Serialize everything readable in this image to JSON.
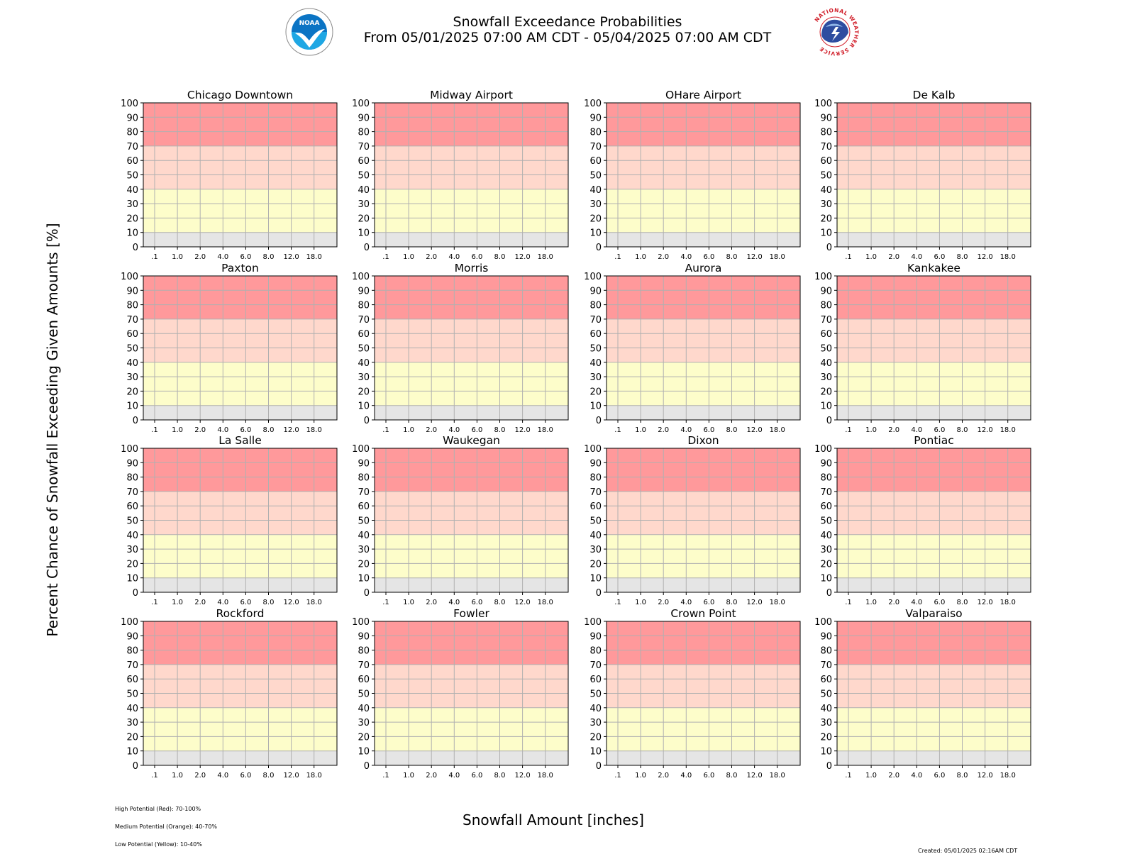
{
  "title": {
    "line1": "Snowfall Exceedance Probabilities",
    "line2": "From 05/01/2025 07:00 AM CDT - 05/04/2025 07:00 AM CDT"
  },
  "logos": {
    "left": "NOAA",
    "right": "NATIONAL WEATHER SERVICE"
  },
  "axis": {
    "ylabel": "Percent Chance of Snowfall Exceeding Given Amounts [%]",
    "xlabel": "Snowfall Amount [inches]"
  },
  "legend_notes": {
    "high": "High Potential (Red): 70-100%",
    "medium": "Medium Potential (Orange): 40-70%",
    "low": "Low Potential (Yellow): 10-40%"
  },
  "created": "Created: 05/01/2025 02:16AM CDT",
  "colors": {
    "high": "#ff999b",
    "medium": "#ffd8cc",
    "low": "#fdfdca",
    "minimal": "#e5e5e5",
    "grid": "#b0b0b0"
  },
  "chart_data": {
    "type": "line",
    "panels": [
      "Chicago Downtown",
      "Midway Airport",
      "OHare Airport",
      "De Kalb",
      "Paxton",
      "Morris",
      "Aurora",
      "Kankakee",
      "La Salle",
      "Waukegan",
      "Dixon",
      "Pontiac",
      "Rockford",
      "Fowler",
      "Crown Point",
      "Valparaiso"
    ],
    "x_ticks": [
      ".1",
      "1.0",
      "2.0",
      "4.0",
      "6.0",
      "8.0",
      "12.0",
      "18.0"
    ],
    "y_ticks": [
      0,
      10,
      20,
      30,
      40,
      50,
      60,
      70,
      80,
      90,
      100
    ],
    "ylim": [
      0,
      100
    ],
    "bands": [
      {
        "from": 0,
        "to": 10,
        "color": "#e5e5e5"
      },
      {
        "from": 10,
        "to": 40,
        "color": "#fdfdca"
      },
      {
        "from": 40,
        "to": 70,
        "color": "#ffd8cc"
      },
      {
        "from": 70,
        "to": 100,
        "color": "#ff999b"
      }
    ],
    "grid": true,
    "series": []
  }
}
